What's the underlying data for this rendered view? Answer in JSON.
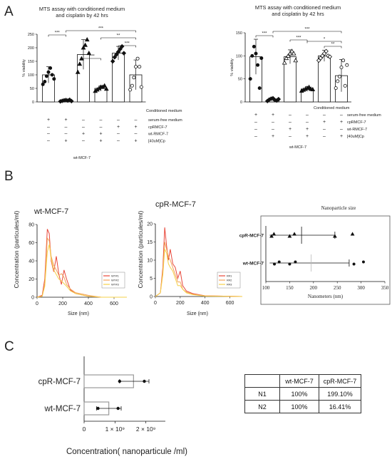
{
  "panels": {
    "a": "A",
    "b": "B",
    "c": "C"
  },
  "chart_data": [
    {
      "type": "bar",
      "id": "A-left",
      "title_lines": [
        "MTS assay with  conditioned medium",
        "and cisplatin  by 42 hrs"
      ],
      "ylabel": "% viability",
      "ylim": [
        0,
        250
      ],
      "yticks": [
        0,
        50,
        100,
        150,
        200,
        250
      ],
      "values": [
        100,
        5,
        175,
        50,
        180,
        100
      ],
      "errors": [
        30,
        3,
        55,
        10,
        25,
        55
      ],
      "points": [
        [
          65,
          75,
          95,
          110,
          125,
          100,
          85
        ],
        [
          2,
          4,
          6,
          7,
          5,
          8,
          3
        ],
        [
          110,
          140,
          160,
          200,
          210,
          230,
          180
        ],
        [
          40,
          45,
          50,
          55,
          55,
          60,
          48
        ],
        [
          150,
          165,
          175,
          185,
          195,
          205,
          180
        ],
        [
          45,
          60,
          90,
          130,
          160,
          130,
          55
        ]
      ],
      "filled": [
        true,
        true,
        true,
        true,
        true,
        false
      ],
      "markers": [
        "circle",
        "diamond",
        "triangle",
        "triangle",
        "diamond",
        "circle"
      ],
      "significance": [
        {
          "from": 0,
          "to": 1,
          "label": "***"
        },
        {
          "from": 1,
          "to": 5,
          "label": "***"
        },
        {
          "from": 2,
          "to": 3,
          "label": "***"
        },
        {
          "from": 3,
          "to": 5,
          "label": "**"
        },
        {
          "from": 4,
          "to": 5,
          "label": "***"
        }
      ],
      "conditions_header": "Conditioned medium",
      "condition_rows": [
        {
          "label": "serum-free medium",
          "symbols": [
            "+",
            "+",
            "–",
            "–",
            "–",
            "–"
          ]
        },
        {
          "label": "cpRMCF-7",
          "symbols": [
            "–",
            "–",
            "–",
            "–",
            "+",
            "+"
          ]
        },
        {
          "label": "wt-RMCF-7",
          "symbols": [
            "–",
            "–",
            "+",
            "+",
            "–",
            "–"
          ]
        },
        {
          "label": "[40uM]Cp",
          "symbols": [
            "–",
            "+",
            "–",
            "+",
            "–",
            "+"
          ]
        }
      ],
      "footer": "wt-MCF-7"
    },
    {
      "type": "bar",
      "id": "A-right",
      "title_lines": [
        "MTS assay with  conditioned medium",
        "and cisplatin  by 42 hrs"
      ],
      "ylabel": "% viability",
      "ylim": [
        0,
        150
      ],
      "yticks": [
        0,
        50,
        100,
        150
      ],
      "values": [
        98,
        5,
        98,
        28,
        100,
        57
      ],
      "errors": [
        38,
        3,
        15,
        5,
        12,
        35
      ],
      "points": [
        [
          50,
          100,
          120,
          105,
          80,
          30,
          95
        ],
        [
          2,
          5,
          7,
          8,
          4,
          3,
          6
        ],
        [
          85,
          95,
          100,
          105,
          110,
          105,
          90
        ],
        [
          24,
          26,
          28,
          30,
          32,
          28,
          27
        ],
        [
          90,
          95,
          100,
          105,
          110,
          100,
          98
        ],
        [
          30,
          45,
          55,
          75,
          90,
          35,
          80
        ]
      ],
      "filled": [
        true,
        true,
        false,
        true,
        false,
        false
      ],
      "markers": [
        "circle",
        "diamond",
        "triangle",
        "triangle",
        "diamond",
        "circle"
      ],
      "significance": [
        {
          "from": 0,
          "to": 1,
          "label": "***"
        },
        {
          "from": 1,
          "to": 5,
          "label": "***"
        },
        {
          "from": 2,
          "to": 3,
          "label": "***"
        },
        {
          "from": 3,
          "to": 5,
          "label": "*"
        },
        {
          "from": 4,
          "to": 5,
          "label": "**"
        }
      ],
      "conditions_header": "Conditioned medium",
      "condition_rows": [
        {
          "label": "serum-free medium",
          "symbols": [
            "+",
            "+",
            "–",
            "–",
            "–",
            "–"
          ]
        },
        {
          "label": "cpRMCF-7",
          "symbols": [
            "–",
            "–",
            "–",
            "–",
            "+",
            "+"
          ]
        },
        {
          "label": "wt-RMCF-7",
          "symbols": [
            "–",
            "–",
            "+",
            "+",
            "–",
            "–"
          ]
        },
        {
          "label": "[40uM]Cp",
          "symbols": [
            "–",
            "+",
            "–",
            "+",
            "–",
            "+"
          ]
        }
      ],
      "footer": "wt-MCF-7"
    },
    {
      "type": "line",
      "id": "B-left",
      "title": "wt-MCF-7",
      "ylabel": "Concentration (particules/ml)",
      "xlabel": "Size (nm)",
      "ylim": [
        0,
        80
      ],
      "yticks": [
        0,
        20,
        40,
        60,
        80
      ],
      "xlim": [
        0,
        700
      ],
      "xticks": [
        0,
        200,
        400,
        600
      ],
      "legend": [
        "WT#1",
        "WT#2",
        "WT#3"
      ],
      "series": [
        {
          "color": "#e8473a",
          "x": [
            0,
            40,
            60,
            80,
            95,
            110,
            130,
            150,
            170,
            190,
            210,
            230,
            260,
            300,
            400,
            500,
            700
          ],
          "y": [
            0,
            2,
            20,
            75,
            70,
            40,
            28,
            45,
            25,
            14,
            30,
            20,
            8,
            4,
            1,
            0,
            0
          ]
        },
        {
          "color": "#f2a35b",
          "x": [
            0,
            40,
            60,
            80,
            95,
            110,
            130,
            150,
            170,
            190,
            210,
            230,
            260,
            300,
            400,
            500,
            700
          ],
          "y": [
            0,
            1,
            15,
            65,
            62,
            45,
            35,
            30,
            24,
            26,
            22,
            14,
            9,
            5,
            2,
            0,
            0
          ]
        },
        {
          "color": "#f5d04a",
          "x": [
            0,
            40,
            60,
            80,
            95,
            110,
            130,
            150,
            170,
            190,
            210,
            230,
            260,
            300,
            400,
            500,
            700
          ],
          "y": [
            0,
            1,
            12,
            50,
            58,
            42,
            30,
            25,
            20,
            18,
            15,
            12,
            7,
            4,
            1,
            0,
            0
          ]
        }
      ]
    },
    {
      "type": "line",
      "id": "B-middle",
      "title": "cpR-MCF-7",
      "ylabel": "Concentration (particules/ml)",
      "xlabel": "Size (nm)",
      "ylim": [
        0,
        20
      ],
      "yticks": [
        0,
        5,
        10,
        15,
        20
      ],
      "xlim": [
        0,
        700
      ],
      "xticks": [
        0,
        200,
        400,
        600
      ],
      "legend": [
        "R#1",
        "R#2",
        "R#3"
      ],
      "series": [
        {
          "color": "#e8473a",
          "x": [
            0,
            40,
            60,
            75,
            90,
            105,
            120,
            140,
            160,
            180,
            200,
            220,
            250,
            300,
            400,
            700
          ],
          "y": [
            0,
            1,
            8,
            19,
            14,
            10,
            13,
            9,
            8,
            5,
            7,
            3,
            1.5,
            0.8,
            0.2,
            0
          ]
        },
        {
          "color": "#f2a35b",
          "x": [
            0,
            40,
            60,
            75,
            90,
            105,
            120,
            140,
            160,
            180,
            200,
            220,
            250,
            300,
            400,
            700
          ],
          "y": [
            0,
            1,
            7,
            15,
            13,
            11,
            10,
            8,
            6,
            4,
            4,
            2,
            1.2,
            0.6,
            0.2,
            0
          ]
        },
        {
          "color": "#f5d04a",
          "x": [
            0,
            40,
            60,
            75,
            90,
            105,
            120,
            140,
            160,
            180,
            200,
            220,
            250,
            300,
            400,
            700
          ],
          "y": [
            0,
            1,
            6,
            13,
            12,
            9,
            8,
            7,
            5,
            3,
            3,
            2,
            1,
            0.5,
            0.1,
            0
          ]
        }
      ]
    },
    {
      "type": "scatter",
      "id": "B-right",
      "title": "Nanoparticle size",
      "xlabel": "Nanometers (nm)",
      "xlim": [
        100,
        350
      ],
      "xticks": [
        100,
        150,
        200,
        250,
        300,
        350
      ],
      "categories": [
        "cpR-MCF-7",
        "wt-MCF-7"
      ],
      "means": [
        175,
        195
      ],
      "whisker_low": [
        108,
        108
      ],
      "whisker_high": [
        245,
        275
      ],
      "points": [
        [
          112,
          117,
          150,
          160,
          245,
          282
        ],
        [
          118,
          128,
          150,
          162,
          285,
          305
        ]
      ]
    },
    {
      "type": "bar",
      "id": "C",
      "orientation": "horizontal",
      "categories": [
        "cpR-MCF-7",
        "wt-MCF-7"
      ],
      "values": [
        1.6,
        0.8
      ],
      "errors_low": [
        1.15,
        0.4
      ],
      "errors_high": [
        2.1,
        1.2
      ],
      "points": [
        [
          1.15,
          1.95
        ],
        [
          0.45,
          1.1
        ]
      ],
      "xlim": [
        0,
        3
      ],
      "xticks": [
        "0",
        "1 × 10⁹",
        "2 × 10⁹"
      ],
      "xlabel": "Concentration( nanoparticule /ml)"
    }
  ],
  "table": {
    "header": [
      "",
      "wt-MCF-7",
      "cpR-MCF-7"
    ],
    "rows": [
      [
        "N1",
        "100%",
        "199.10%"
      ],
      [
        "N2",
        "100%",
        "16.41%"
      ]
    ]
  }
}
